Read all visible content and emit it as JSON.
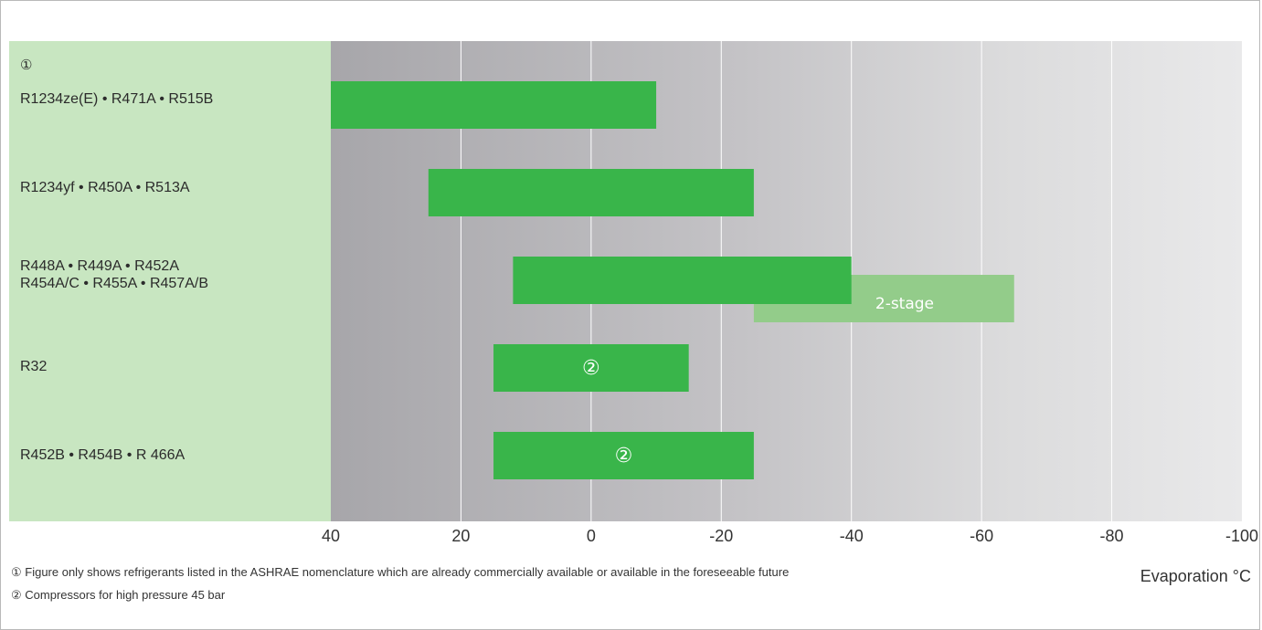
{
  "chart_data": {
    "type": "bar",
    "subtype": "range",
    "xlabel": "Evaporation °C",
    "xlim": [
      40,
      -100
    ],
    "xticks": [
      "40",
      "20",
      "0",
      "-20",
      "-40",
      "-60",
      "-80",
      "-100"
    ],
    "grid": true,
    "header_marker": "①",
    "rows": [
      {
        "label": "R1234ze(E) • R471A  • R515B",
        "ranges": [
          {
            "from": 40,
            "to": -10,
            "style": "main",
            "text": ""
          }
        ]
      },
      {
        "label": "R1234yf • R450A • R513A",
        "ranges": [
          {
            "from": 25,
            "to": -25,
            "style": "main",
            "text": ""
          }
        ]
      },
      {
        "label": "R448A • R449A • R452A\nR454A/C • R455A • R457A/B",
        "ranges": [
          {
            "from": -25,
            "to": -65,
            "style": "light",
            "text": "2-stage"
          },
          {
            "from": 12,
            "to": -40,
            "style": "main",
            "text": ""
          }
        ]
      },
      {
        "label": "R32",
        "ranges": [
          {
            "from": 15,
            "to": -15,
            "style": "main",
            "text": "②"
          }
        ]
      },
      {
        "label": "R452B • R454B  • R 466A",
        "ranges": [
          {
            "from": 15,
            "to": -25,
            "style": "main",
            "text": "②"
          }
        ]
      }
    ],
    "colors": {
      "main": "#39b54a",
      "light": "#93cc8a",
      "label_bg": "#c8e6c1",
      "grid": "#ffffff"
    }
  },
  "footnotes": {
    "one": "①  Figure only shows refrigerants listed in the ASHRAE nomenclature which are already commercially available or available in the foreseeable future",
    "two": "②  Compressors for high pressure 45 bar"
  }
}
